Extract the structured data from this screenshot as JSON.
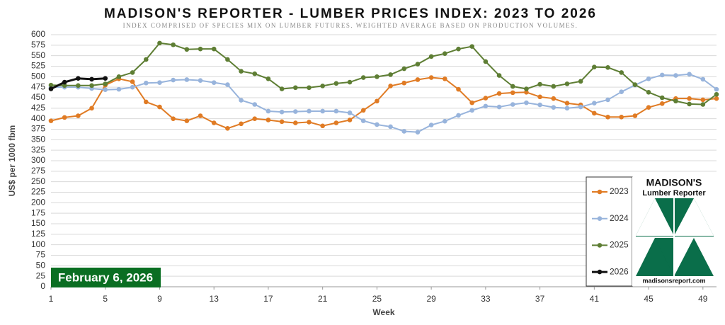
{
  "chart_data": {
    "type": "line",
    "title": "MADISON'S REPORTER - LUMBER PRICES INDEX: 2023 TO 2026",
    "subtitle": "INDEX COMPRISED OF SPECIES MIX ON LUMBER FUTURES. WEIGHTED AVERAGE BASED ON PRODUCTION VOLUMES.",
    "x_label": "Week",
    "y_label": "US$ per 1000 fbm",
    "annotation": "February 6, 2026",
    "logo": {
      "name": "MADISON'S",
      "subname": "Lumber Reporter",
      "url": "madisonsreport.com"
    },
    "x": [
      1,
      2,
      3,
      4,
      5,
      6,
      7,
      8,
      9,
      10,
      11,
      12,
      13,
      14,
      15,
      16,
      17,
      18,
      19,
      20,
      21,
      22,
      23,
      24,
      25,
      26,
      27,
      28,
      29,
      30,
      31,
      32,
      33,
      34,
      35,
      36,
      37,
      38,
      39,
      40,
      41,
      42,
      43,
      44,
      45,
      46,
      47,
      48,
      49,
      50
    ],
    "xlim": [
      1,
      50
    ],
    "xticks": [
      1,
      5,
      9,
      13,
      17,
      21,
      25,
      29,
      33,
      37,
      41,
      45,
      49
    ],
    "ylim": [
      0,
      600
    ],
    "yticks": [
      0,
      25,
      50,
      75,
      100,
      125,
      150,
      175,
      200,
      225,
      250,
      275,
      300,
      325,
      350,
      375,
      400,
      425,
      450,
      475,
      500,
      525,
      550,
      575,
      600
    ],
    "grid": true,
    "legend": "lower right",
    "series": [
      {
        "name": "2023",
        "color": "#e07b24",
        "values": [
          395,
          403,
          407,
          425,
          480,
          495,
          488,
          440,
          428,
          400,
          395,
          407,
          390,
          377,
          388,
          400,
          397,
          393,
          390,
          392,
          383,
          390,
          397,
          420,
          442,
          478,
          485,
          493,
          498,
          495,
          470,
          438,
          449,
          460,
          462,
          463,
          452,
          448,
          437,
          433,
          413,
          404,
          404,
          407,
          427,
          436,
          448,
          448,
          445,
          448
        ]
      },
      {
        "name": "2024",
        "color": "#98b4dc",
        "values": [
          475,
          475,
          475,
          472,
          469,
          470,
          475,
          485,
          486,
          492,
          493,
          491,
          486,
          481,
          444,
          434,
          418,
          416,
          417,
          418,
          418,
          418,
          414,
          395,
          386,
          381,
          370,
          368,
          385,
          394,
          408,
          420,
          430,
          428,
          434,
          438,
          433,
          427,
          425,
          428,
          437,
          445,
          464,
          480,
          495,
          504,
          503,
          506,
          494,
          470
        ]
      },
      {
        "name": "2025",
        "color": "#5e7e34",
        "values": [
          480,
          479,
          479,
          479,
          483,
          500,
          510,
          541,
          580,
          576,
          565,
          566,
          566,
          541,
          513,
          507,
          495,
          471,
          474,
          474,
          478,
          484,
          487,
          498,
          500,
          505,
          519,
          530,
          548,
          555,
          566,
          572,
          536,
          503,
          477,
          471,
          482,
          477,
          483,
          489,
          523,
          522,
          510,
          481,
          463,
          450,
          442,
          435,
          434,
          458
        ]
      },
      {
        "name": "2026",
        "color": "#111111",
        "values": [
          471,
          487,
          496,
          494,
          496,
          null,
          null,
          null,
          null,
          null,
          null,
          null,
          null,
          null,
          null,
          null,
          null,
          null,
          null,
          null,
          null,
          null,
          null,
          null,
          null,
          null,
          null,
          null,
          null,
          null,
          null,
          null,
          null,
          null,
          null,
          null,
          null,
          null,
          null,
          null,
          null,
          null,
          null,
          null,
          null,
          null,
          null,
          null,
          null,
          null
        ]
      }
    ]
  }
}
